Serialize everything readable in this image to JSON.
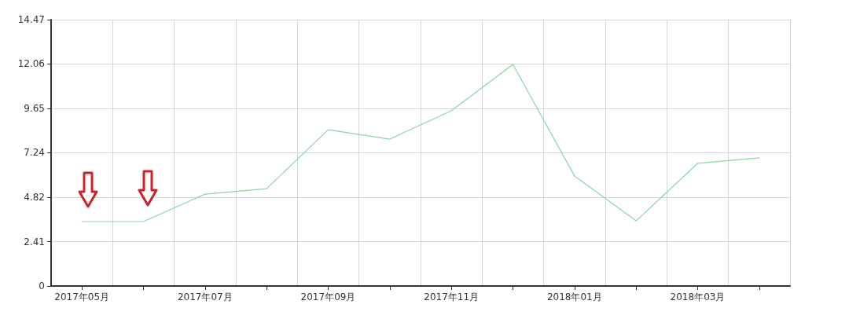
{
  "chart_data": {
    "type": "line",
    "categories": [
      "2017年05月",
      null,
      "2017年07月",
      null,
      "2017年09月",
      null,
      "2017年11月",
      null,
      "2018年01月",
      null,
      "2018年03月",
      null
    ],
    "series": [
      {
        "color": "#8fd4a4",
        "values": [
          3.5,
          3.5,
          4.99,
          5.29,
          8.49,
          7.98,
          9.52,
          12.04,
          5.98,
          3.54,
          6.66,
          6.96
        ]
      }
    ],
    "ylim": [
      0,
      14.47
    ],
    "yticks": [
      0,
      2.41,
      4.82,
      7.24,
      9.65,
      12.06,
      14.47
    ],
    "grid": true,
    "marker": "none",
    "line_style": "solid"
  }
}
